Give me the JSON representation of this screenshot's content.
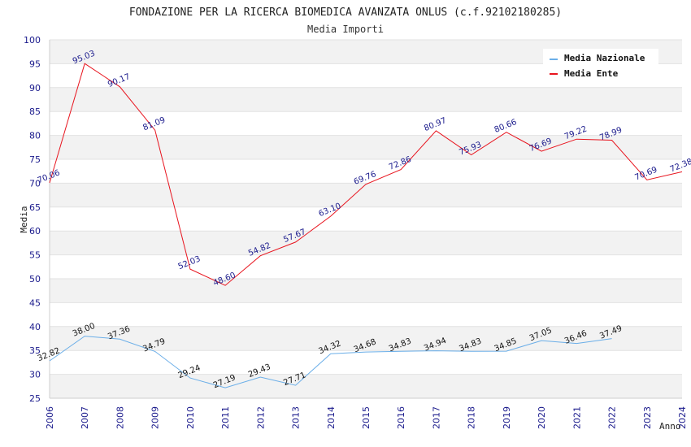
{
  "chart_data": {
    "type": "line",
    "title": "FONDAZIONE PER LA RICERCA BIOMEDICA AVANZATA ONLUS (c.f.92102180285)",
    "subtitle": "Media Importi",
    "xlabel": "Anno",
    "ylabel": "Media",
    "ylim": [
      25,
      100
    ],
    "yticks": [
      25,
      30,
      35,
      40,
      45,
      50,
      55,
      60,
      65,
      70,
      75,
      80,
      85,
      90,
      95,
      100
    ],
    "x": [
      2006,
      2007,
      2008,
      2009,
      2010,
      2011,
      2012,
      2013,
      2014,
      2015,
      2016,
      2017,
      2018,
      2019,
      2020,
      2021,
      2022,
      2023,
      2024
    ],
    "grid": true,
    "legend_position": "top-right",
    "series": [
      {
        "name": "Media Nazionale",
        "color": "#6aaee8",
        "values": [
          32.82,
          38.0,
          37.36,
          34.79,
          29.24,
          27.19,
          29.43,
          27.71,
          34.32,
          34.68,
          34.83,
          34.94,
          34.83,
          34.85,
          37.05,
          36.46,
          37.49,
          null,
          null
        ],
        "labels": [
          "32.82",
          "38.00",
          "37.36",
          "34.79",
          "29.24",
          "27.19",
          "29.43",
          "27.71",
          "34.32",
          "34.68",
          "34.83",
          "34.94",
          "34.83",
          "34.85",
          "37.05",
          "36.46",
          "37.49",
          null,
          null
        ]
      },
      {
        "name": "Media Ente",
        "color": "#e8141e",
        "values": [
          70.06,
          95.03,
          90.17,
          81.09,
          52.03,
          48.6,
          54.82,
          57.67,
          63.1,
          69.76,
          72.86,
          80.97,
          75.93,
          80.66,
          76.69,
          79.22,
          78.99,
          70.69,
          72.38
        ],
        "labels": [
          "70.06",
          "95.03",
          "90.17",
          "81.09",
          "52.03",
          "48.60",
          "54.82",
          "57.67",
          "63.10",
          "69.76",
          "72.86",
          "80.97",
          "75.93",
          "80.66",
          "76.69",
          "79.22",
          "78.99",
          "70.69",
          "72.38"
        ]
      }
    ]
  }
}
